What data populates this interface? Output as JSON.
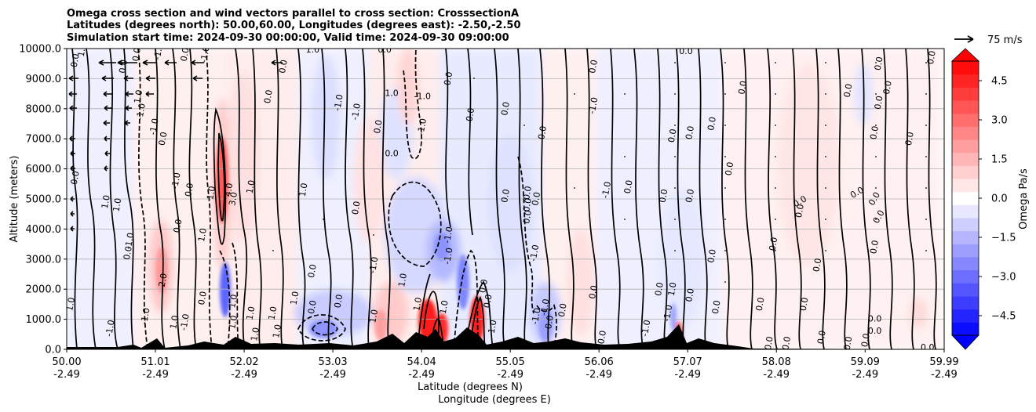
{
  "chart_data": {
    "type": "heatmap",
    "title_lines": [
      "Omega cross section and wind vectors parallel to cross section: CrosssectionA",
      "Latitudes (degrees north): 50.00,60.00, Longitudes (degrees east): -2.50,-2.50",
      "Simulation start time: 2024-09-30 00:00:00, Valid time: 2024-09-30 09:00:00"
    ],
    "ylabel": "Altitude (meters)",
    "xlabel_lat": "Latitude (degrees N)",
    "xlabel_lon": "Longitude (degrees E)",
    "ylim": [
      0,
      10000
    ],
    "y_ticks": [
      0,
      1000,
      2000,
      3000,
      4000,
      5000,
      6000,
      7000,
      8000,
      9000,
      10000
    ],
    "y_tick_labels": [
      "0.0",
      "1000.0",
      "2000.0",
      "3000.0",
      "4000.0",
      "5000.0",
      "6000.0",
      "7000.0",
      "8000.0",
      "9000.0",
      "10000.0"
    ],
    "xlim": [
      50.0,
      59.99
    ],
    "x_ticks": [
      50.0,
      51.01,
      52.02,
      53.03,
      54.04,
      55.05,
      56.06,
      57.07,
      58.08,
      59.09,
      59.99
    ],
    "x_tick_labels_lat": [
      "50.00",
      "51.01",
      "52.02",
      "53.03",
      "54.04",
      "55.05",
      "56.06",
      "57.07",
      "58.08",
      "59.09",
      "59.99"
    ],
    "x_tick_labels_lon": [
      "-2.49",
      "-2.49",
      "-2.49",
      "-2.49",
      "-2.49",
      "-2.49",
      "-2.49",
      "-2.49",
      "-2.49",
      "-2.49",
      "-2.49"
    ],
    "grid": "horizontal",
    "colorbar": {
      "label": "Omega Pa/s",
      "range": [
        -5.25,
        5.25
      ],
      "ticks": [
        -4.5,
        -3.0,
        -1.5,
        0.0,
        1.5,
        3.0,
        4.5
      ],
      "tick_labels": [
        "−4.5",
        "−3.0",
        "−1.5",
        "0.0",
        "1.5",
        "3.0",
        "4.5"
      ],
      "extend": "both",
      "cmap": "bwr"
    },
    "quiver_key": {
      "label": "75 m/s",
      "value": 75
    },
    "contour_labels": [
      {
        "lat": 50.1,
        "alt": 9600,
        "text": "0.0",
        "rot": -80
      },
      {
        "lat": 50.18,
        "alt": 9950,
        "text": "1.0",
        "rot": -80
      },
      {
        "lat": 50.1,
        "alt": 5700,
        "text": "0.0",
        "rot": -80
      },
      {
        "lat": 50.05,
        "alt": 1500,
        "text": "1.0",
        "rot": -80
      },
      {
        "lat": 50.5,
        "alt": 700,
        "text": "-1.0",
        "rot": -80
      },
      {
        "lat": 50.8,
        "alt": 9800,
        "text": "0.0",
        "rot": -80
      },
      {
        "lat": 50.65,
        "alt": 9400,
        "text": "0.0",
        "rot": -80
      },
      {
        "lat": 50.82,
        "alt": 8400,
        "text": "1.0",
        "rot": -80
      },
      {
        "lat": 50.85,
        "alt": 7900,
        "text": "-1.0",
        "rot": -80
      },
      {
        "lat": 51.0,
        "alt": 7400,
        "text": "-1.0",
        "rot": -80
      },
      {
        "lat": 51.1,
        "alt": 7000,
        "text": "0.0",
        "rot": -80
      },
      {
        "lat": 50.45,
        "alt": 4900,
        "text": "1.0",
        "rot": -80
      },
      {
        "lat": 50.58,
        "alt": 4800,
        "text": "1.0",
        "rot": -80
      },
      {
        "lat": 50.72,
        "alt": 3600,
        "text": "-1.0",
        "rot": -80
      },
      {
        "lat": 50.7,
        "alt": 3200,
        "text": "0.0",
        "rot": -80
      },
      {
        "lat": 51.25,
        "alt": 5600,
        "text": "-1.0",
        "rot": -80
      },
      {
        "lat": 51.4,
        "alt": 5300,
        "text": "0.0",
        "rot": -80
      },
      {
        "lat": 51.27,
        "alt": 4100,
        "text": "0.0",
        "rot": -80
      },
      {
        "lat": 51.55,
        "alt": 3800,
        "text": "1.0",
        "rot": -80
      },
      {
        "lat": 51.1,
        "alt": 2300,
        "text": "2.0",
        "rot": -80
      },
      {
        "lat": 50.9,
        "alt": 1100,
        "text": "-1.0",
        "rot": -80
      },
      {
        "lat": 51.23,
        "alt": 900,
        "text": "1.0",
        "rot": -80
      },
      {
        "lat": 51.55,
        "alt": 1700,
        "text": "0.0",
        "rot": -80
      },
      {
        "lat": 51.35,
        "alt": 900,
        "text": "-1.0",
        "rot": -80
      },
      {
        "lat": 51.05,
        "alt": 9900,
        "text": "-1.0",
        "rot": -80
      },
      {
        "lat": 51.35,
        "alt": 9800,
        "text": "0.0",
        "rot": -80
      },
      {
        "lat": 51.58,
        "alt": 9800,
        "text": "-1.0",
        "rot": -80
      },
      {
        "lat": 51.65,
        "alt": 5200,
        "text": "1.0",
        "rot": -80
      },
      {
        "lat": 51.85,
        "alt": 5300,
        "text": "4.0",
        "rot": -80
      },
      {
        "lat": 51.9,
        "alt": 5000,
        "text": "3.0",
        "rot": -80
      },
      {
        "lat": 52.1,
        "alt": 5400,
        "text": "1.0",
        "rot": -80
      },
      {
        "lat": 52.7,
        "alt": 5300,
        "text": "1.0",
        "rot": -80
      },
      {
        "lat": 52.3,
        "alt": 8400,
        "text": "0.0",
        "rot": -80
      },
      {
        "lat": 52.47,
        "alt": 9400,
        "text": "0.0",
        "rot": -80
      },
      {
        "lat": 51.9,
        "alt": 1600,
        "text": "1.0",
        "rot": -80
      },
      {
        "lat": 52.1,
        "alt": 1200,
        "text": "1.0",
        "rot": -80
      },
      {
        "lat": 52.35,
        "alt": 1200,
        "text": "1.0",
        "rot": -80
      },
      {
        "lat": 51.9,
        "alt": 900,
        "text": "1.0",
        "rot": -80
      },
      {
        "lat": 52.15,
        "alt": 500,
        "text": "1.0",
        "rot": -80
      },
      {
        "lat": 52.4,
        "alt": 600,
        "text": "1.0",
        "rot": -80
      },
      {
        "lat": 52.6,
        "alt": 1700,
        "text": "1.0",
        "rot": -80
      },
      {
        "lat": 52.8,
        "alt": 1400,
        "text": "0.0",
        "rot": -80
      },
      {
        "lat": 52.8,
        "alt": 9950,
        "text": "1.0",
        "rot": 0
      },
      {
        "lat": 52.8,
        "alt": 2600,
        "text": "0.0",
        "rot": -80
      },
      {
        "lat": 53.3,
        "alt": 7900,
        "text": "-1.0",
        "rot": -80
      },
      {
        "lat": 53.1,
        "alt": 8200,
        "text": "-1.0",
        "rot": -80
      },
      {
        "lat": 53.3,
        "alt": 4700,
        "text": "0.0",
        "rot": -80
      },
      {
        "lat": 53.1,
        "alt": 1600,
        "text": "0.0",
        "rot": -80
      },
      {
        "lat": 53.5,
        "alt": 1100,
        "text": "1.0",
        "rot": -80
      },
      {
        "lat": 53.5,
        "alt": 2800,
        "text": "-1.0",
        "rot": -80
      },
      {
        "lat": 53.7,
        "alt": 8500,
        "text": "1.0",
        "rot": 0
      },
      {
        "lat": 53.7,
        "alt": 6500,
        "text": "0.0",
        "rot": 0
      },
      {
        "lat": 53.55,
        "alt": 7400,
        "text": "0.0",
        "rot": -80
      },
      {
        "lat": 54.05,
        "alt": 8400,
        "text": "-1.0",
        "rot": 0
      },
      {
        "lat": 54.05,
        "alt": 7400,
        "text": "-1.0",
        "rot": -80
      },
      {
        "lat": 53.62,
        "alt": 9950,
        "text": "0.0",
        "rot": 0
      },
      {
        "lat": 54.0,
        "alt": 1500,
        "text": "1.0",
        "rot": -80
      },
      {
        "lat": 54.3,
        "alt": 1400,
        "text": "1.0",
        "rot": -80
      },
      {
        "lat": 53.83,
        "alt": 2300,
        "text": "1.0",
        "rot": -80
      },
      {
        "lat": 54.35,
        "alt": 3100,
        "text": "-1.0",
        "rot": -80
      },
      {
        "lat": 54.35,
        "alt": 3800,
        "text": "-1.0",
        "rot": -80
      },
      {
        "lat": 54.35,
        "alt": 9000,
        "text": "0.0",
        "rot": -80
      },
      {
        "lat": 54.6,
        "alt": 7800,
        "text": "0.0",
        "rot": -80
      },
      {
        "lat": 54.75,
        "alt": 2100,
        "text": "0.0",
        "rot": -80
      },
      {
        "lat": 54.8,
        "alt": 1600,
        "text": "0.0",
        "rot": -80
      },
      {
        "lat": 54.85,
        "alt": 700,
        "text": "-1.0",
        "rot": -80
      },
      {
        "lat": 55.0,
        "alt": 8000,
        "text": "0.0",
        "rot": -80
      },
      {
        "lat": 55.0,
        "alt": 5100,
        "text": "0.0",
        "rot": -80
      },
      {
        "lat": 55.25,
        "alt": 5200,
        "text": "0.0",
        "rot": -80
      },
      {
        "lat": 55.25,
        "alt": 4800,
        "text": "0.0",
        "rot": -80
      },
      {
        "lat": 55.25,
        "alt": 4400,
        "text": "0.0",
        "rot": -80
      },
      {
        "lat": 55.35,
        "alt": 5000,
        "text": "0.0",
        "rot": -80
      },
      {
        "lat": 55.33,
        "alt": 3200,
        "text": "-1.0",
        "rot": -80
      },
      {
        "lat": 55.42,
        "alt": 7200,
        "text": "0.0",
        "rot": -80
      },
      {
        "lat": 55.35,
        "alt": 1100,
        "text": "-1.0",
        "rot": -80
      },
      {
        "lat": 55.5,
        "alt": 900,
        "text": "0.0",
        "rot": -80
      },
      {
        "lat": 55.45,
        "alt": 1400,
        "text": "-1.0",
        "rot": -80
      },
      {
        "lat": 55.65,
        "alt": 1300,
        "text": "0.0",
        "rot": -80
      },
      {
        "lat": 56.0,
        "alt": 8100,
        "text": "-1.0",
        "rot": -80
      },
      {
        "lat": 56.0,
        "alt": 9400,
        "text": "0.0",
        "rot": -80
      },
      {
        "lat": 56.15,
        "alt": 5300,
        "text": "-1.0",
        "rot": -80
      },
      {
        "lat": 56.4,
        "alt": 5400,
        "text": "0.0",
        "rot": -80
      },
      {
        "lat": 56.0,
        "alt": 1900,
        "text": "0.0",
        "rot": -80
      },
      {
        "lat": 56.1,
        "alt": 400,
        "text": "0.0",
        "rot": -80
      },
      {
        "lat": 56.6,
        "alt": 700,
        "text": "-1.0",
        "rot": -80
      },
      {
        "lat": 56.9,
        "alt": 7100,
        "text": "0.0",
        "rot": -80
      },
      {
        "lat": 57.1,
        "alt": 7200,
        "text": "0.0",
        "rot": -80
      },
      {
        "lat": 56.8,
        "alt": 5100,
        "text": "0.0",
        "rot": -80
      },
      {
        "lat": 57.1,
        "alt": 5100,
        "text": "0.0",
        "rot": -80
      },
      {
        "lat": 56.75,
        "alt": 2000,
        "text": "0.0",
        "rot": -80
      },
      {
        "lat": 56.9,
        "alt": 2000,
        "text": "1.0",
        "rot": -80
      },
      {
        "lat": 56.85,
        "alt": 1200,
        "text": "-1.0",
        "rot": -80
      },
      {
        "lat": 57.1,
        "alt": 1800,
        "text": "0.0",
        "rot": -80
      },
      {
        "lat": 57.35,
        "alt": 7500,
        "text": "0.0",
        "rot": -80
      },
      {
        "lat": 57.35,
        "alt": 3100,
        "text": "0.0",
        "rot": -80
      },
      {
        "lat": 57.4,
        "alt": 1400,
        "text": "0.0",
        "rot": -80
      },
      {
        "lat": 57.55,
        "alt": 6000,
        "text": "0.0",
        "rot": -80
      },
      {
        "lat": 57.05,
        "alt": 9900,
        "text": "0.0",
        "rot": 0
      },
      {
        "lat": 57.7,
        "alt": 8700,
        "text": "0.0",
        "rot": -80
      },
      {
        "lat": 57.9,
        "alt": 1500,
        "text": "0.0",
        "rot": -80
      },
      {
        "lat": 58.05,
        "alt": 3500,
        "text": "0.0",
        "rot": -80
      },
      {
        "lat": 58.0,
        "alt": 200,
        "text": "0.0",
        "rot": -80
      },
      {
        "lat": 58.2,
        "alt": 200,
        "text": "0.0",
        "rot": -80
      },
      {
        "lat": 58.35,
        "alt": 4600,
        "text": "0.0",
        "rot": -80
      },
      {
        "lat": 58.4,
        "alt": 1500,
        "text": "0.0",
        "rot": -80
      },
      {
        "lat": 58.55,
        "alt": 2800,
        "text": "0.0",
        "rot": -80
      },
      {
        "lat": 58.35,
        "alt": 4900,
        "text": "0.0",
        "rot": -30
      },
      {
        "lat": 58.6,
        "alt": 400,
        "text": "0.0",
        "rot": -80
      },
      {
        "lat": 58.9,
        "alt": 200,
        "text": "0.0",
        "rot": -80
      },
      {
        "lat": 58.9,
        "alt": 8600,
        "text": "0.0",
        "rot": -80
      },
      {
        "lat": 59.0,
        "alt": 5200,
        "text": "0.0",
        "rot": -30
      },
      {
        "lat": 59.2,
        "alt": 5000,
        "text": "0.0",
        "rot": -60
      },
      {
        "lat": 59.25,
        "alt": 4400,
        "text": "0.0",
        "rot": -60
      },
      {
        "lat": 59.2,
        "alt": 3400,
        "text": "0.0",
        "rot": -80
      },
      {
        "lat": 59.2,
        "alt": 1000,
        "text": "0.0",
        "rot": 0
      },
      {
        "lat": 59.2,
        "alt": 600,
        "text": "0.0",
        "rot": 0
      },
      {
        "lat": 59.8,
        "alt": 50,
        "text": "0.0",
        "rot": 0
      },
      {
        "lat": 59.1,
        "alt": 300,
        "text": "0.0",
        "rot": -80
      },
      {
        "lat": 59.25,
        "alt": 9500,
        "text": "0.0",
        "rot": -80
      },
      {
        "lat": 59.25,
        "alt": 8200,
        "text": "0.0",
        "rot": -80
      },
      {
        "lat": 59.35,
        "alt": 8700,
        "text": "0.0",
        "rot": -80
      },
      {
        "lat": 59.2,
        "alt": 7200,
        "text": "0.0",
        "rot": -80
      },
      {
        "lat": 59.85,
        "alt": 9700,
        "text": "0.0",
        "rot": -80
      },
      {
        "lat": 59.6,
        "alt": 7000,
        "text": "0.0",
        "rot": -80
      }
    ]
  }
}
